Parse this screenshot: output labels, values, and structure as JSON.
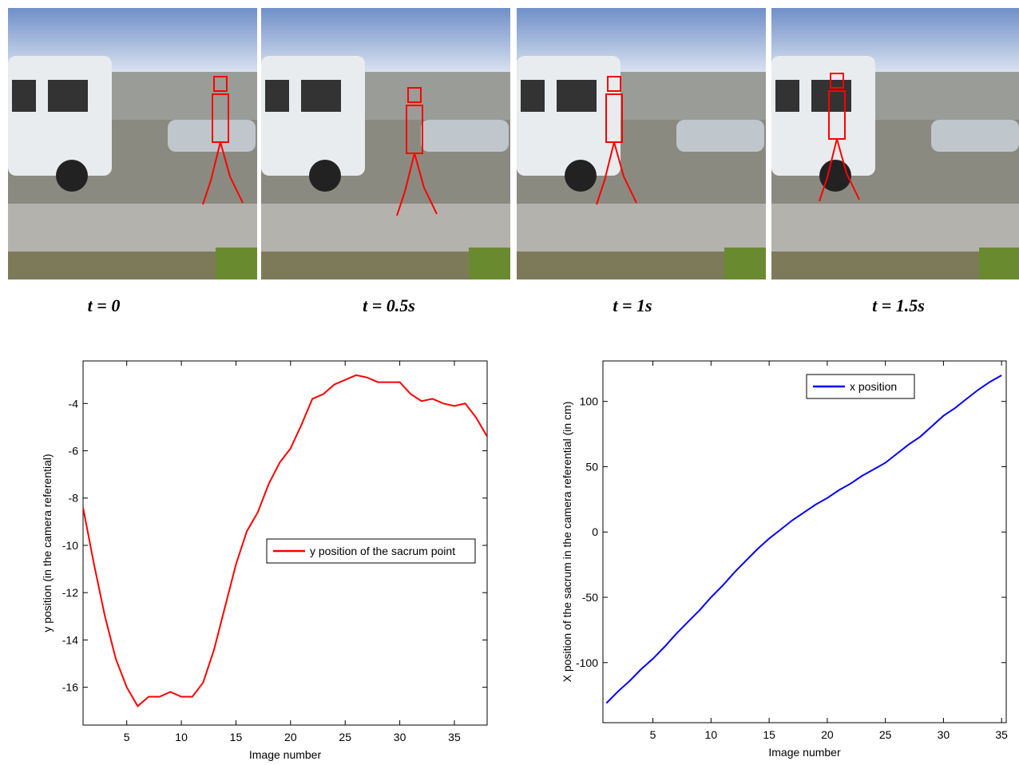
{
  "frames": {
    "captions": [
      "t = 0",
      "t = 0.5s",
      "t = 1s",
      "t = 1.5s"
    ]
  },
  "chart_data": [
    {
      "type": "line",
      "x_label": "Image number",
      "y_label": "y position (in the camera referential)",
      "x": [
        1,
        2,
        3,
        4,
        5,
        6,
        7,
        8,
        9,
        10,
        11,
        12,
        13,
        14,
        15,
        16,
        17,
        18,
        19,
        20,
        21,
        22,
        23,
        24,
        25,
        26,
        27,
        28,
        29,
        30,
        31,
        32,
        33,
        34,
        35,
        36,
        37,
        38
      ],
      "series": [
        {
          "name": "y position of the sacrum point",
          "color": "#ff0000",
          "values": [
            -8.4,
            -10.8,
            -13,
            -14.8,
            -16,
            -16.8,
            -16.4,
            -16.4,
            -16.2,
            -16.4,
            -16.4,
            -15.8,
            -14.4,
            -12.6,
            -10.8,
            -9.4,
            -8.6,
            -7.4,
            -6.5,
            -5.9,
            -4.9,
            -3.8,
            -3.6,
            -3.2,
            -3.0,
            -2.8,
            -2.9,
            -3.1,
            -3.1,
            -3.1,
            -3.6,
            -3.9,
            -3.8,
            -4.0,
            -4.1,
            -4.0,
            -4.6,
            -5.4
          ]
        }
      ],
      "xlim": [
        1,
        38
      ],
      "ylim": [
        -17.6,
        -2.2
      ],
      "xticks": [
        5,
        10,
        15,
        20,
        25,
        30,
        35
      ],
      "yticks": [
        -16,
        -14,
        -12,
        -10,
        -8,
        -6,
        -4
      ],
      "legend": "center-right"
    },
    {
      "type": "line",
      "x_label": "Image number",
      "y_label": "X position of the sacrum in the camera referential (in cm)",
      "x": [
        1,
        2,
        3,
        4,
        5,
        6,
        7,
        8,
        9,
        10,
        11,
        12,
        13,
        14,
        15,
        16,
        17,
        18,
        19,
        20,
        21,
        22,
        23,
        24,
        25,
        26,
        27,
        28,
        29,
        30,
        31,
        32,
        33,
        34,
        35
      ],
      "series": [
        {
          "name": "x position",
          "color": "#0000ff",
          "values": [
            -131,
            -122,
            -114,
            -105,
            -97,
            -88,
            -78,
            -69,
            -60,
            -50,
            -41,
            -31,
            -22,
            -13,
            -5,
            2,
            9,
            15,
            21,
            26,
            32,
            37,
            43,
            48,
            53,
            60,
            67,
            73,
            81,
            89,
            95,
            102,
            109,
            115,
            120
          ]
        }
      ],
      "xlim": [
        0.7,
        35.4
      ],
      "ylim": [
        -146,
        131
      ],
      "xticks": [
        5,
        10,
        15,
        20,
        25,
        30,
        35
      ],
      "yticks": [
        -100,
        -50,
        0,
        50,
        100
      ],
      "legend": "top"
    }
  ]
}
